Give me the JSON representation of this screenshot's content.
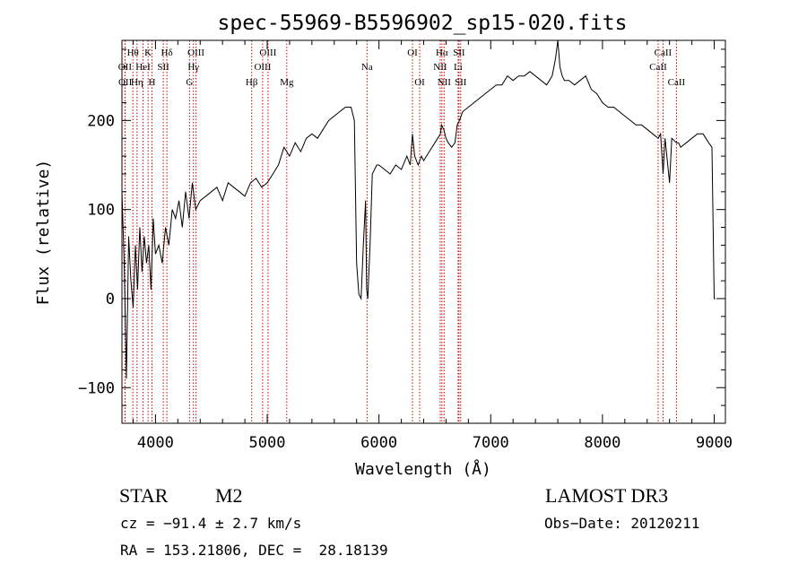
{
  "chart_data": {
    "type": "line",
    "title": "spec-55969-B5596902_sp15-020.fits",
    "xlabel": "Wavelength (Å)",
    "ylabel": "Flux (relative)",
    "xlim": [
      3700,
      9100
    ],
    "ylim": [
      -140,
      290
    ],
    "xticks": [
      4000,
      5000,
      6000,
      7000,
      8000,
      9000
    ],
    "yticks": [
      -100,
      0,
      100,
      200
    ],
    "line_color": "#000000",
    "marker_color": "#cc0000",
    "series": [
      {
        "x": [
          3700,
          3720,
          3740,
          3760,
          3780,
          3800,
          3820,
          3840,
          3860,
          3880,
          3900,
          3920,
          3940,
          3960,
          3980,
          4000,
          4030,
          4060,
          4090,
          4120,
          4150,
          4180,
          4210,
          4240,
          4270,
          4300,
          4330,
          4360,
          4400,
          4450,
          4500,
          4550,
          4600,
          4650,
          4700,
          4750,
          4800,
          4850,
          4900,
          4950,
          5000,
          5050,
          5100,
          5150,
          5200,
          5250,
          5300,
          5350,
          5400,
          5450,
          5500,
          5550,
          5600,
          5650,
          5700,
          5750,
          5780,
          5800,
          5820,
          5840,
          5860,
          5880,
          5890,
          5900,
          5910,
          5920,
          5940,
          5960,
          5980,
          6000,
          6050,
          6100,
          6150,
          6200,
          6250,
          6280,
          6300,
          6320,
          6350,
          6380,
          6400,
          6450,
          6500,
          6550,
          6560,
          6580,
          6600,
          6620,
          6650,
          6680,
          6700,
          6720,
          6750,
          6800,
          6850,
          6900,
          6950,
          7000,
          7050,
          7100,
          7150,
          7200,
          7250,
          7300,
          7350,
          7400,
          7450,
          7500,
          7550,
          7580,
          7600,
          7620,
          7640,
          7660,
          7700,
          7750,
          7800,
          7850,
          7900,
          7950,
          8000,
          8050,
          8100,
          8150,
          8200,
          8250,
          8300,
          8350,
          8400,
          8450,
          8498,
          8520,
          8542,
          8560,
          8600,
          8620,
          8662,
          8680,
          8700,
          8750,
          8800,
          8850,
          8900,
          8950,
          8980,
          9000,
          9010
        ],
        "y": [
          120,
          40,
          -90,
          70,
          20,
          -10,
          60,
          10,
          80,
          30,
          70,
          40,
          60,
          10,
          90,
          50,
          60,
          40,
          80,
          60,
          100,
          90,
          110,
          80,
          120,
          90,
          130,
          100,
          110,
          115,
          120,
          125,
          110,
          130,
          125,
          120,
          115,
          130,
          135,
          125,
          130,
          140,
          150,
          170,
          160,
          175,
          165,
          180,
          185,
          180,
          190,
          200,
          205,
          210,
          215,
          215,
          200,
          40,
          5,
          0,
          60,
          110,
          10,
          0,
          30,
          60,
          140,
          145,
          150,
          150,
          145,
          140,
          150,
          145,
          160,
          150,
          185,
          160,
          150,
          160,
          155,
          165,
          175,
          185,
          195,
          190,
          180,
          175,
          170,
          175,
          195,
          200,
          210,
          215,
          220,
          225,
          230,
          235,
          240,
          240,
          250,
          245,
          250,
          250,
          255,
          250,
          245,
          240,
          250,
          270,
          290,
          260,
          250,
          245,
          245,
          240,
          245,
          250,
          235,
          230,
          220,
          215,
          215,
          210,
          205,
          200,
          195,
          195,
          190,
          185,
          180,
          185,
          140,
          180,
          130,
          180,
          175,
          175,
          170,
          175,
          180,
          185,
          185,
          175,
          170,
          0,
          0
        ]
      }
    ],
    "lines": [
      {
        "label": "Hθ",
        "x": 3798,
        "row": 1
      },
      {
        "label": "OII",
        "x": 3727,
        "row": 2
      },
      {
        "label": "OII",
        "x": 3729,
        "row": 3
      },
      {
        "label": "K",
        "x": 3934,
        "row": 1
      },
      {
        "label": "HeI",
        "x": 3889,
        "row": 2
      },
      {
        "label": "Hη",
        "x": 3835,
        "row": 3
      },
      {
        "label": "H",
        "x": 3969,
        "row": 3
      },
      {
        "label": "Hδ",
        "x": 4102,
        "row": 1
      },
      {
        "label": "SII",
        "x": 4070,
        "row": 2
      },
      {
        "label": "OIII",
        "x": 4363,
        "row": 1
      },
      {
        "label": "Hγ",
        "x": 4340,
        "row": 2
      },
      {
        "label": "G",
        "x": 4305,
        "row": 3
      },
      {
        "label": "Hβ",
        "x": 4861,
        "row": 3
      },
      {
        "label": "OIII",
        "x": 5007,
        "row": 1
      },
      {
        "label": "OIII",
        "x": 4959,
        "row": 2
      },
      {
        "label": "Mg",
        "x": 5175,
        "row": 3
      },
      {
        "label": "Na",
        "x": 5893,
        "row": 2
      },
      {
        "label": "OI",
        "x": 6300,
        "row": 1
      },
      {
        "label": "OI",
        "x": 6364,
        "row": 3
      },
      {
        "label": "Hα",
        "x": 6563,
        "row": 1
      },
      {
        "label": "NII",
        "x": 6548,
        "row": 2
      },
      {
        "label": "NII",
        "x": 6583,
        "row": 3
      },
      {
        "label": "SII",
        "x": 6716,
        "row": 1
      },
      {
        "label": "Li",
        "x": 6708,
        "row": 2
      },
      {
        "label": "SII",
        "x": 6731,
        "row": 3
      },
      {
        "label": "CaII",
        "x": 8542,
        "row": 1
      },
      {
        "label": "CaII",
        "x": 8498,
        "row": 2
      },
      {
        "label": "CaII",
        "x": 8662,
        "row": 3
      }
    ]
  },
  "info": {
    "class": "STAR",
    "subclass": "M2",
    "survey": "LAMOST DR3",
    "cz": "cz = −91.4 ± 2.7 km/s",
    "obs_date": "Obs−Date: 20120211",
    "coords": "RA = 153.21806, DEC =  28.18139"
  }
}
